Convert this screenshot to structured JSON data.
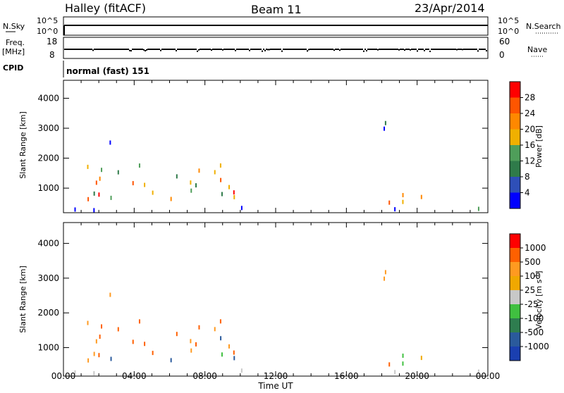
{
  "header": {
    "station": "Halley (fitACF)",
    "beam": "Beam 11",
    "date": "23/Apr/2014"
  },
  "strip_labels": {
    "nsky": "N.Sky",
    "nsky_ticks": [
      "10^5",
      "10^0"
    ],
    "nsearch": "N.Search",
    "nsearch_ticks": [
      "10^5",
      "10^0"
    ],
    "freq": "Freq.",
    "freq_unit": "[MHz]",
    "freq_ticks": [
      "18",
      "8"
    ],
    "nave": "Nave",
    "nave_ticks": [
      "60",
      "0"
    ],
    "cpid": "CPID",
    "cpid_value": "normal (fast) 151"
  },
  "colors": {
    "power_scale": [
      "#0000ff",
      "#2e4fb8",
      "#2f7b4a",
      "#4f9e5a",
      "#f0b000",
      "#ff8800",
      "#ff5500",
      "#ff0000"
    ],
    "velocity_scale": [
      "#ff0000",
      "#ff6000",
      "#ff9a20",
      "#f0a800",
      "#c8c8c8",
      "#40c040",
      "#2e7d4f",
      "#2a5a9c",
      "#1a3fb0"
    ],
    "ground_scatter": "#888888"
  },
  "chart_data": [
    {
      "type": "heatmap",
      "name": "Power",
      "xlabel": "Time UT",
      "ylabel": "Slant Range [km]",
      "x_ticks": [
        "00:00",
        "04:00",
        "08:00",
        "12:00",
        "16:00",
        "20:00",
        "00:00"
      ],
      "y_ticks": [
        "1000",
        "2000",
        "3000",
        "4000"
      ],
      "xlim_hours": [
        0,
        24
      ],
      "ylim_km": [
        180,
        4600
      ],
      "colorbar_label": "Power [dB]",
      "colorbar_ticks": [
        "4",
        "8",
        "12",
        "16",
        "20",
        "24",
        "28"
      ],
      "colorbar_range": [
        0,
        30
      ],
      "regions": [
        {
          "t": [
            0.8,
            10.6
          ],
          "r": [
            600,
            1800
          ],
          "level": 0.6
        },
        {
          "t": [
            15.6,
            20.4
          ],
          "r": [
            500,
            900
          ],
          "level": 0.55
        },
        {
          "t": [
            17.8,
            18.6
          ],
          "r": [
            2600,
            3600
          ],
          "level": 0.2
        },
        {
          "t": [
            2.6,
            3.8
          ],
          "r": [
            2100,
            2600
          ],
          "level": 0.3
        },
        {
          "t": [
            0,
            24
          ],
          "r": [
            250,
            350
          ],
          "level": 0.15
        }
      ]
    },
    {
      "type": "heatmap",
      "name": "Velocity",
      "xlabel": "Time UT",
      "ylabel": "Slant Range [km]",
      "x_ticks": [
        "00:00",
        "04:00",
        "08:00",
        "12:00",
        "16:00",
        "20:00",
        "00:00"
      ],
      "y_ticks": [
        "1000",
        "2000",
        "3000",
        "4000"
      ],
      "xlim_hours": [
        0,
        24
      ],
      "ylim_km": [
        180,
        4600
      ],
      "colorbar_label": "Velocity [m s^-1]",
      "colorbar_ticks": [
        "1000",
        "500",
        "100",
        "25",
        "-25",
        "-100",
        "-500",
        "-1000"
      ],
      "colorbar_range": [
        -1000,
        1000
      ]
    }
  ]
}
